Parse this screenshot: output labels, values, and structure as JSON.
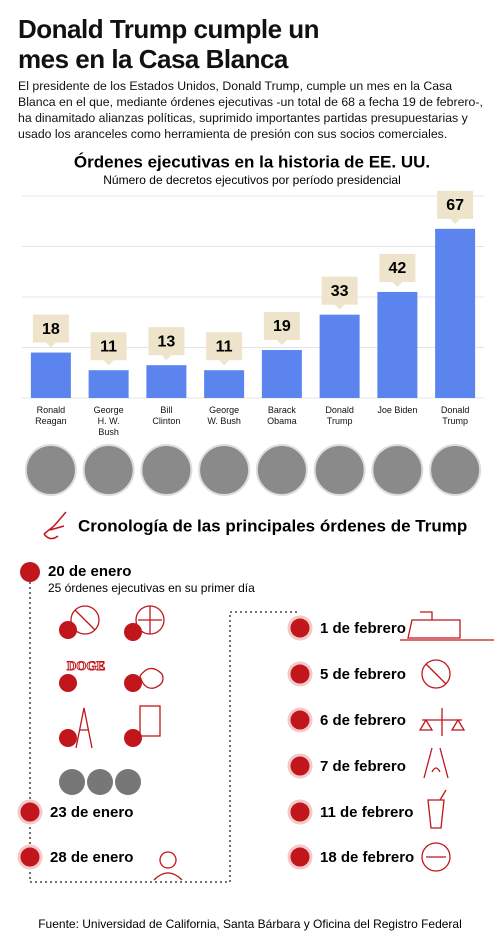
{
  "header": {
    "title": "Donald Trump cumple un mes en la Casa Blanca",
    "intro": "El presidente de los Estados Unidos, Donald Trump, cumple un mes en la Casa Blanca en el que, mediante órdenes ejecutivas -un total de 68 a fecha 19 de febrero-, ha dinamitado alianzas políticas, suprimido importantes partidas presupuestarias y usado los aranceles como herramienta de presión con sus socios comerciales."
  },
  "chart_data": {
    "type": "bar",
    "title": "Órdenes ejecutivas en la historia de EE. UU.",
    "subtitle": "Número de decretos ejecutivos por período presidencial",
    "categories": [
      "Ronald\nReagan",
      "George\nH. W.\nBush",
      "Bill\nClinton",
      "George\nW. Bush",
      "Barack\nObama",
      "Donald\nTrump",
      "Joe Biden",
      "Donald\nTrump"
    ],
    "values": [
      18,
      11,
      13,
      11,
      19,
      33,
      42,
      67
    ],
    "color": "#5b84ee",
    "label_box_color": "#ede4cb",
    "ylim": [
      0,
      80
    ],
    "yticks": [
      0,
      20,
      40,
      60,
      80
    ],
    "grid": true
  },
  "timeline": {
    "title": "Cronología de las principales órdenes de Trump",
    "doge_label": "DOGE",
    "events": [
      {
        "date": "20 de enero",
        "note": "25 órdenes ejecutivas en su primer día"
      },
      {
        "date": "23 de enero"
      },
      {
        "date": "28 de enero"
      },
      {
        "date": "1 de febrero"
      },
      {
        "date": "5 de febrero"
      },
      {
        "date": "6 de febrero"
      },
      {
        "date": "7 de febrero"
      },
      {
        "date": "11 de febrero"
      },
      {
        "date": "18 de febrero"
      }
    ]
  },
  "source": "Fuente: Universidad de California, Santa Bárbara y Oficina del Registro Federal"
}
